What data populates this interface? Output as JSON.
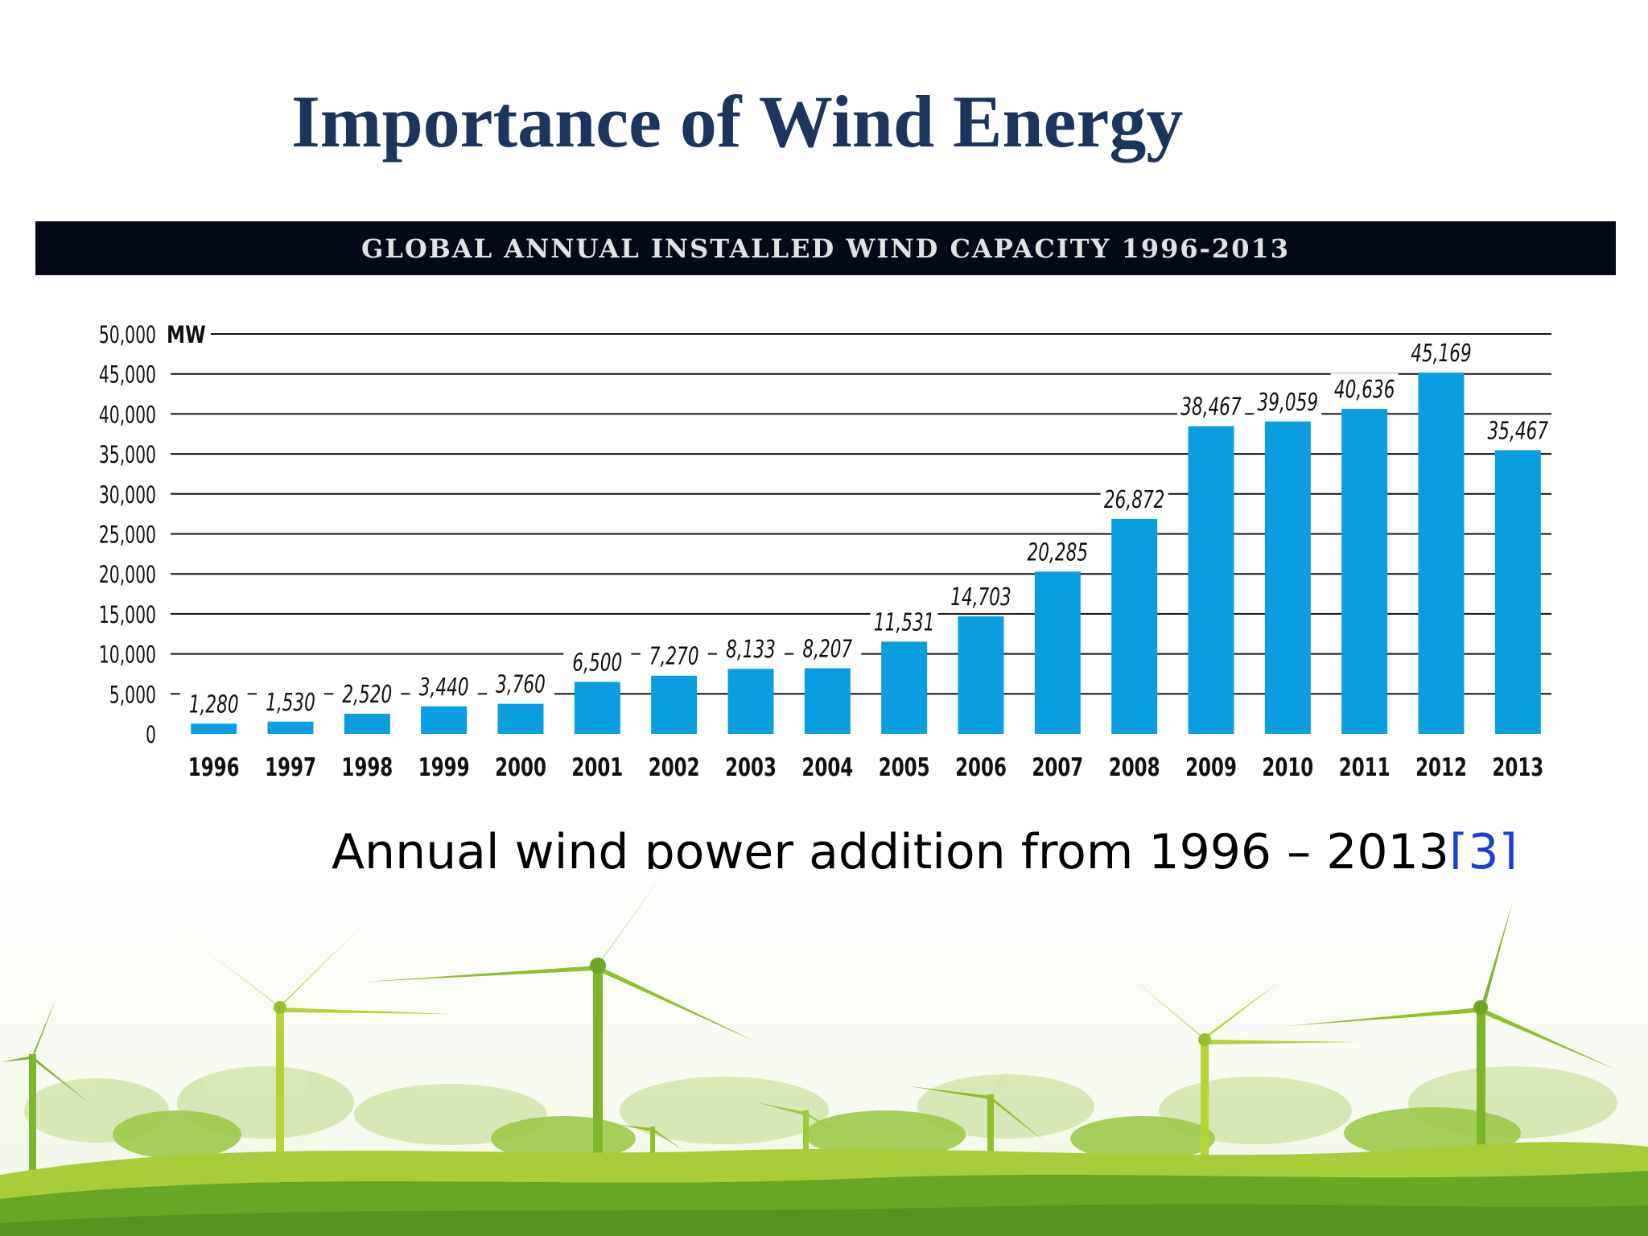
{
  "slide": {
    "title": "Importance of Wind Energy",
    "caption": "Annual wind power addition from 1996 – 2013",
    "citation": "[3]"
  },
  "colors": {
    "title": "#1b3560",
    "banner": "#050a18",
    "bar": "#0a9ee0",
    "gridline": "#111111",
    "link": "#1a3fd8",
    "grass_dark": "#6aa625",
    "grass_light": "#a9cc3a",
    "turbine": "#8fbf2a"
  },
  "chart_data": {
    "type": "bar",
    "title": "GLOBAL ANNUAL INSTALLED WIND CAPACITY 1996-2013",
    "unit_label": "MW",
    "ylim": [
      0,
      50000
    ],
    "yticks": [
      "0",
      "5,000",
      "10,000",
      "15,000",
      "20,000",
      "25,000",
      "30,000",
      "35,000",
      "40,000",
      "45,000",
      "50,000"
    ],
    "ytick_values": [
      0,
      5000,
      10000,
      15000,
      20000,
      25000,
      30000,
      35000,
      40000,
      45000,
      50000
    ],
    "grid": true,
    "categories": [
      "1996",
      "1997",
      "1998",
      "1999",
      "2000",
      "2001",
      "2002",
      "2003",
      "2004",
      "2005",
      "2006",
      "2007",
      "2008",
      "2009",
      "2010",
      "2011",
      "2012",
      "2013"
    ],
    "values": [
      1280,
      1530,
      2520,
      3440,
      3760,
      6500,
      7270,
      8133,
      8207,
      11531,
      14703,
      20285,
      26872,
      38467,
      39059,
      40636,
      45169,
      35467
    ],
    "value_labels": [
      "1,280",
      "1,530",
      "2,520",
      "3,440",
      "3,760",
      "6,500",
      "7,270",
      "8,133",
      "8,207",
      "11,531",
      "14,703",
      "20,285",
      "26,872",
      "38,467",
      "39,059",
      "40,636",
      "45,169",
      "35,467"
    ]
  }
}
